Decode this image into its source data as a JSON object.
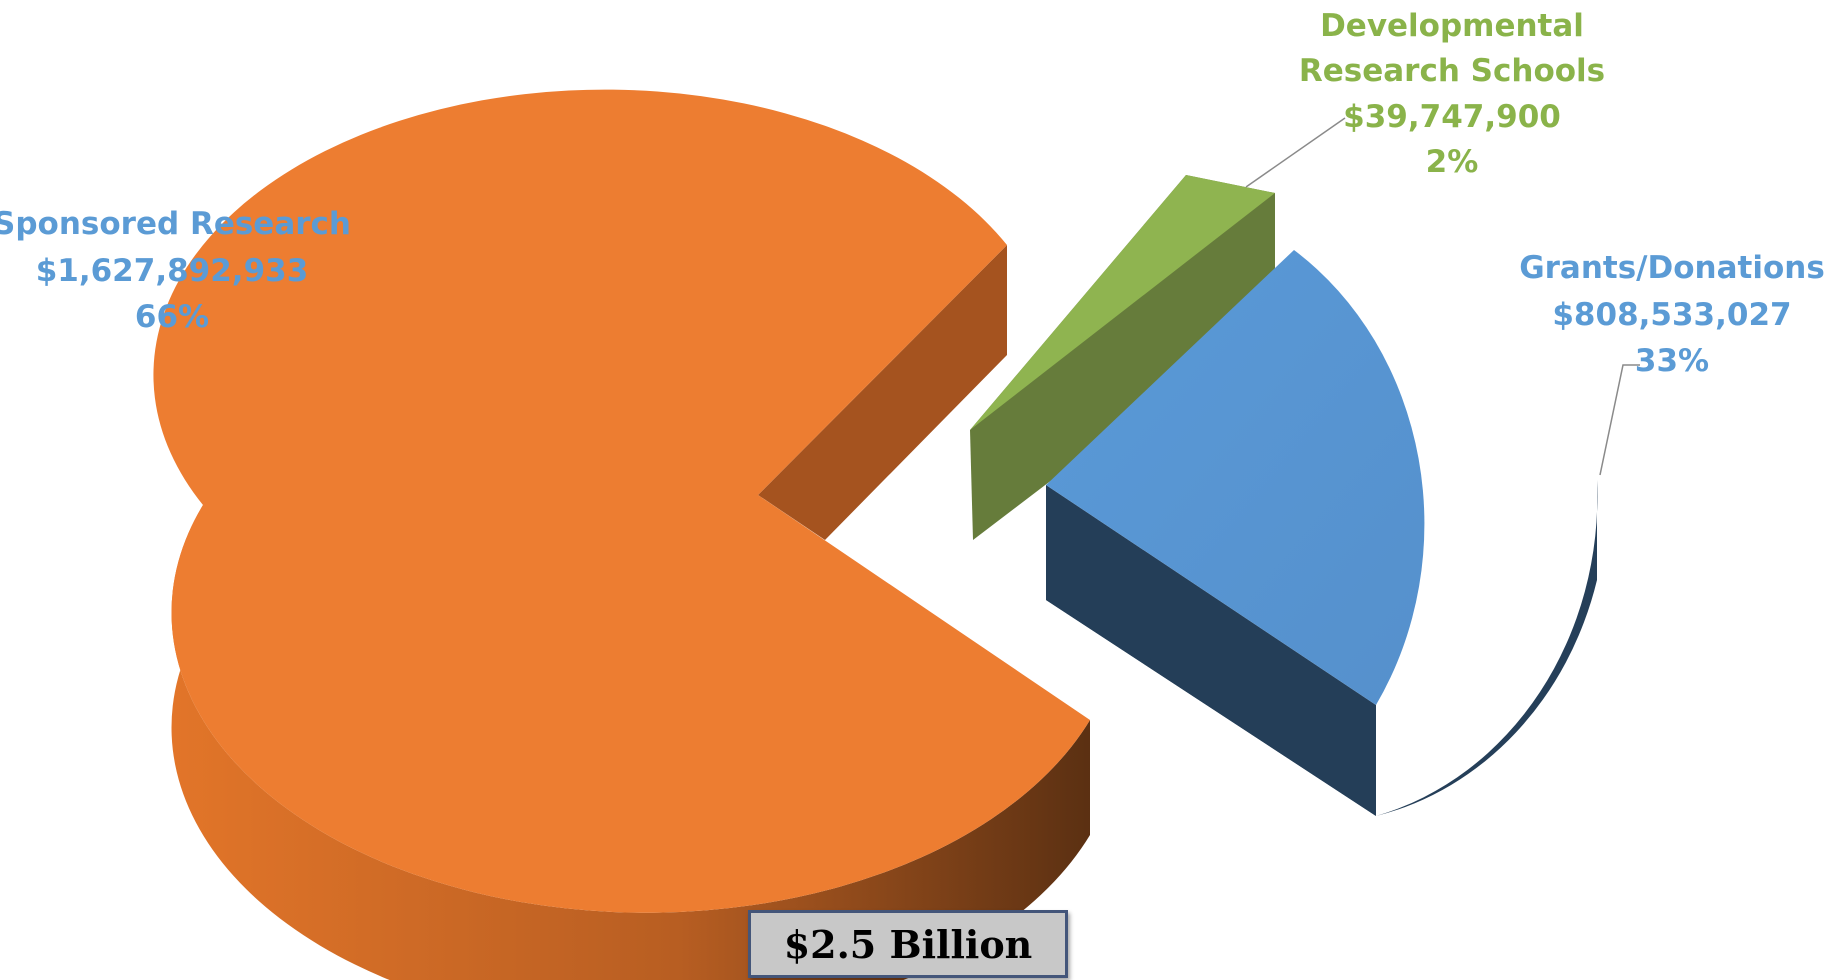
{
  "chart_data": {
    "type": "pie",
    "style": "3d-exploded",
    "title": "",
    "total_label": "$2.5 Billion",
    "slices": [
      {
        "name": "Sponsored Research",
        "value": 1627892933,
        "value_label": "$1,627,892,933",
        "percent_label": "66%",
        "color": "#ed7d31",
        "side_color": "#a5531f",
        "label_color": "#5b9bd5"
      },
      {
        "name": "Developmental Research Schools",
        "name_lines": [
          "Developmental",
          "Research Schools"
        ],
        "value": 39747900,
        "value_label": "$39,747,900",
        "percent_label": "2%",
        "color": "#8fb450",
        "side_color": "#667c3b",
        "label_color": "#8ab34a"
      },
      {
        "name": "Grants/Donations",
        "value": 808533027,
        "value_label": "$808,533,027",
        "percent_label": "33%",
        "color": "#5b98d5",
        "side_color": "#253f59",
        "label_color": "#5b9bd5"
      }
    ]
  }
}
